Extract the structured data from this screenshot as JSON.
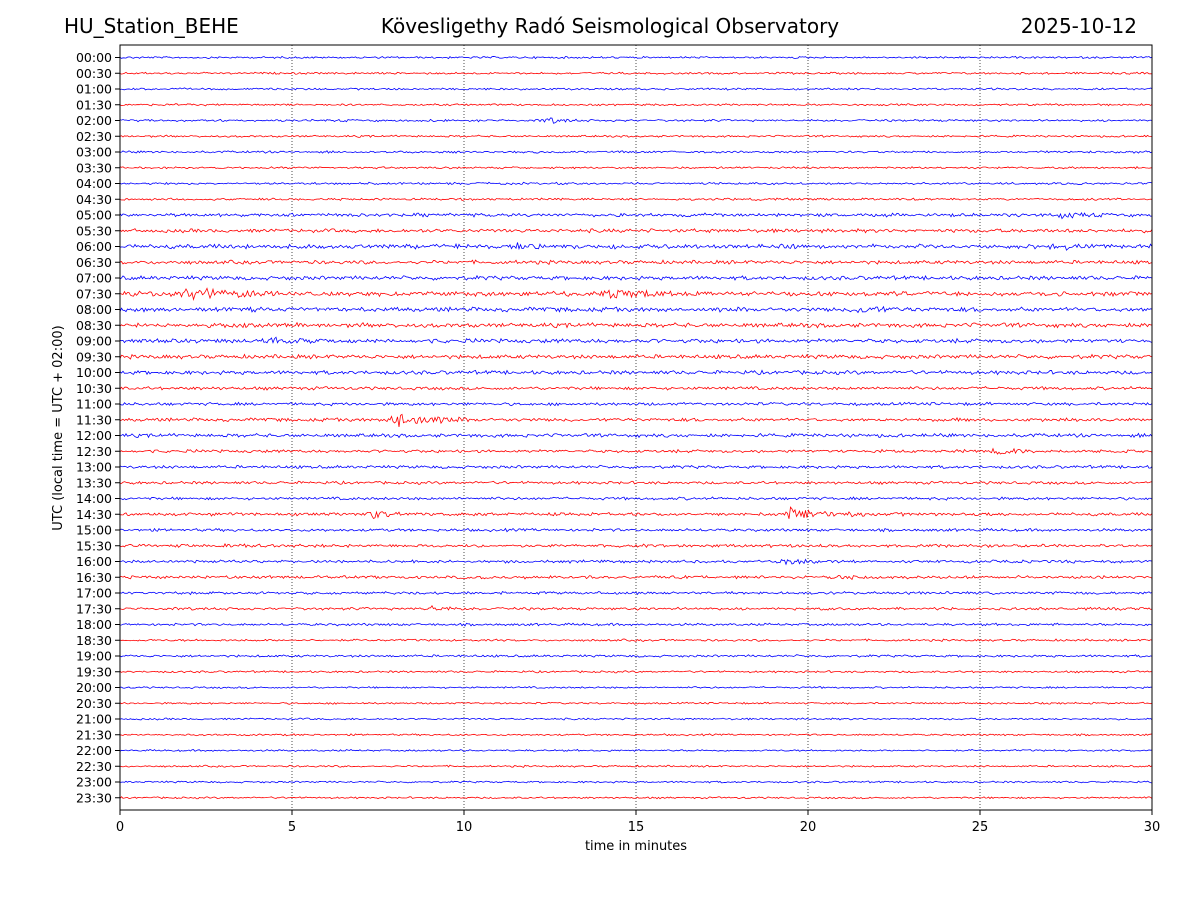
{
  "header": {
    "station": "HU_Station_BEHE",
    "title": "Kövesligethy Radó Seismological Observatory",
    "date": "2025-10-12"
  },
  "chart_data": {
    "type": "line",
    "title": "Kövesligethy Radó Seismological Observatory",
    "xlabel": "time in minutes",
    "ylabel": "UTC (local time = UTC + 02:00)",
    "xlim": [
      0,
      30
    ],
    "x_ticks": [
      0,
      5,
      10,
      15,
      20,
      25,
      30
    ],
    "x_tick_labels": [
      "0",
      "5",
      "10",
      "15",
      "20",
      "25",
      "30"
    ],
    "grid": "vertical dotted lines at each 5 minutes",
    "trace_colors": [
      "#0000ff",
      "#ff0000"
    ],
    "rows": [
      "00:00",
      "00:30",
      "01:00",
      "01:30",
      "02:00",
      "02:30",
      "03:00",
      "03:30",
      "04:00",
      "04:30",
      "05:00",
      "05:30",
      "06:00",
      "06:30",
      "07:00",
      "07:30",
      "08:00",
      "08:30",
      "09:00",
      "09:30",
      "10:00",
      "10:30",
      "11:00",
      "11:30",
      "12:00",
      "12:30",
      "13:00",
      "13:30",
      "14:00",
      "14:30",
      "15:00",
      "15:30",
      "16:00",
      "16:30",
      "17:00",
      "17:30",
      "18:00",
      "18:30",
      "19:00",
      "19:30",
      "20:00",
      "20:30",
      "21:00",
      "21:30",
      "22:00",
      "22:30",
      "23:00",
      "23:30"
    ],
    "noise_level": [
      1.2,
      1.2,
      1.2,
      1.2,
      1.3,
      1.2,
      1.3,
      1.2,
      1.3,
      1.3,
      2.0,
      2.2,
      2.6,
      2.2,
      2.4,
      2.8,
      2.6,
      2.6,
      2.5,
      2.4,
      2.3,
      1.9,
      1.8,
      2.0,
      2.1,
      1.8,
      1.8,
      1.7,
      1.7,
      1.9,
      1.7,
      1.8,
      1.7,
      1.8,
      1.6,
      1.6,
      1.5,
      1.3,
      1.4,
      1.2,
      1.1,
      1.1,
      1.1,
      1.1,
      1.1,
      1.1,
      1.1,
      1.1
    ],
    "events": [
      {
        "row": "02:00",
        "minute": 12.5,
        "amplitude": 3
      },
      {
        "row": "05:00",
        "minute": 27.4,
        "amplitude": 3
      },
      {
        "row": "06:00",
        "minute": 11.5,
        "amplitude": 3
      },
      {
        "row": "06:00",
        "minute": 27.3,
        "amplitude": 3
      },
      {
        "row": "07:30",
        "minute": 2.1,
        "amplitude": 9
      },
      {
        "row": "07:30",
        "minute": 14.2,
        "amplitude": 6
      },
      {
        "row": "08:00",
        "minute": 21.6,
        "amplitude": 4
      },
      {
        "row": "09:00",
        "minute": 4.5,
        "amplitude": 4
      },
      {
        "row": "11:30",
        "minute": 8.1,
        "amplitude": 9
      },
      {
        "row": "12:30",
        "minute": 25.6,
        "amplitude": 4
      },
      {
        "row": "14:30",
        "minute": 7.4,
        "amplitude": 4
      },
      {
        "row": "14:30",
        "minute": 19.6,
        "amplitude": 9
      },
      {
        "row": "15:30",
        "minute": 3.2,
        "amplitude": 3
      },
      {
        "row": "16:00",
        "minute": 19.5,
        "amplitude": 3
      },
      {
        "row": "16:30",
        "minute": 20.8,
        "amplitude": 3
      },
      {
        "row": "17:30",
        "minute": 9.1,
        "amplitude": 3
      }
    ]
  }
}
